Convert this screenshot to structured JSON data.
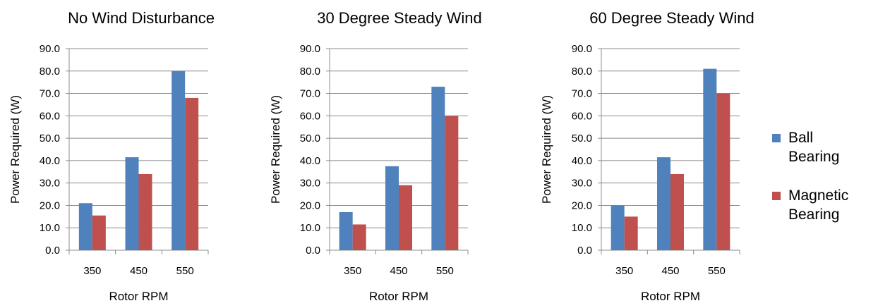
{
  "chart_data": [
    {
      "type": "bar",
      "title": "No Wind Disturbance",
      "xlabel": "Rotor RPM",
      "ylabel": "Power Required  (W)",
      "categories": [
        "350",
        "450",
        "550"
      ],
      "yticks": [
        "0.0",
        "10.0",
        "20.0",
        "30.0",
        "40.0",
        "50.0",
        "60.0",
        "70.0",
        "80.0",
        "90.0"
      ],
      "ylim": [
        0,
        90
      ],
      "grid": true,
      "series": [
        {
          "name": "Ball Bearing",
          "values": [
            21,
            41.5,
            80
          ]
        },
        {
          "name": "Magnetic Bearing",
          "values": [
            15.5,
            34,
            68
          ]
        }
      ]
    },
    {
      "type": "bar",
      "title": "30 Degree Steady Wind",
      "xlabel": "Rotor RPM",
      "ylabel": "Power Required  (W)",
      "categories": [
        "350",
        "450",
        "550"
      ],
      "yticks": [
        "0.0",
        "10.0",
        "20.0",
        "30.0",
        "40.0",
        "50.0",
        "60.0",
        "70.0",
        "80.0",
        "90.0"
      ],
      "ylim": [
        0,
        90
      ],
      "grid": true,
      "series": [
        {
          "name": "Ball Bearing",
          "values": [
            17,
            37.5,
            73
          ]
        },
        {
          "name": "Magnetic Bearing",
          "values": [
            11.5,
            29,
            60
          ]
        }
      ]
    },
    {
      "type": "bar",
      "title": "60 Degree Steady Wind",
      "xlabel": "Rotor RPM",
      "ylabel": "Power Required  (W)",
      "categories": [
        "350",
        "450",
        "550"
      ],
      "yticks": [
        "0.0",
        "10.0",
        "20.0",
        "30.0",
        "40.0",
        "50.0",
        "60.0",
        "70.0",
        "80.0",
        "90.0"
      ],
      "ylim": [
        0,
        90
      ],
      "grid": true,
      "series": [
        {
          "name": "Ball Bearing",
          "values": [
            20,
            41.5,
            81
          ]
        },
        {
          "name": "Magnetic Bearing",
          "values": [
            15,
            34,
            70
          ]
        }
      ]
    }
  ],
  "legend": {
    "placement": "right",
    "items": [
      {
        "lines": [
          "Ball",
          "Bearing"
        ],
        "color": "#4F81BD"
      },
      {
        "lines": [
          "Magnetic",
          "Bearing"
        ],
        "color": "#C0504D"
      }
    ]
  },
  "colors": {
    "ball": "#4F81BD",
    "magnetic": "#C0504D",
    "grid": "#8C8C8C",
    "axis": "#8C8C8C"
  }
}
